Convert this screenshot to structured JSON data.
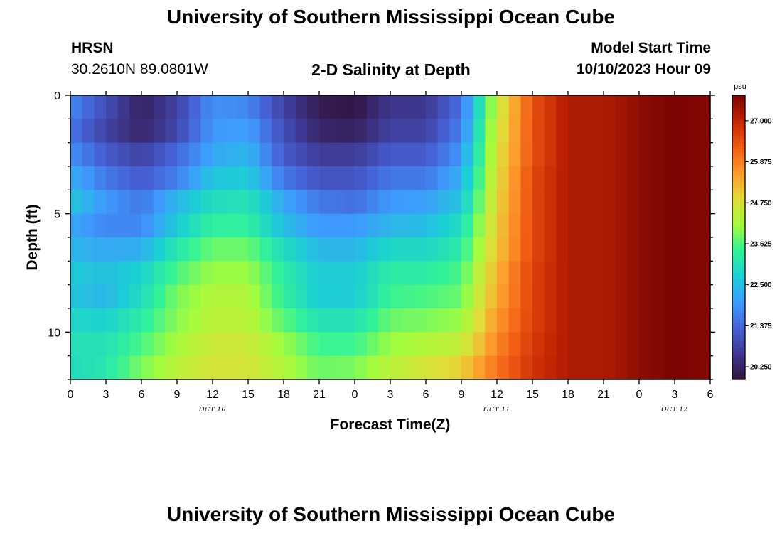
{
  "header": {
    "title": "University of Southern Mississippi Ocean Cube",
    "station": "HRSN",
    "coords": "30.2610N  89.0801W",
    "subtitle": "2-D Salinity at Depth",
    "model_label": "Model Start Time",
    "model_time": "10/10/2023 Hour 09"
  },
  "footer": {
    "title": "University of Southern Mississippi Ocean Cube"
  },
  "chart_data": {
    "type": "heatmap",
    "title": "2-D Salinity at Depth",
    "xlabel": "Forecast Time(Z)",
    "ylabel": "Depth (ft)",
    "x_ticks": [
      "0",
      "3",
      "6",
      "9",
      "12",
      "15",
      "18",
      "21",
      "0",
      "3",
      "6",
      "9",
      "12",
      "15",
      "18",
      "21",
      "0",
      "3",
      "6"
    ],
    "x_date_labels": [
      {
        "label": "OCT 10",
        "at_hour": 12
      },
      {
        "label": "OCT 11",
        "at_hour": 36
      },
      {
        "label": "OCT 12",
        "at_hour": 51
      }
    ],
    "x_range_hours": [
      0,
      54
    ],
    "y_ticks": [
      "0",
      "5",
      "10"
    ],
    "y_range": [
      0,
      12
    ],
    "colorbar": {
      "unit": "psu",
      "ticks": [
        "27.000",
        "25.875",
        "24.750",
        "23.625",
        "22.500",
        "21.375",
        "20.250"
      ],
      "range": [
        19.9,
        27.7
      ],
      "colors": [
        "#30123b",
        "#3e378f",
        "#4662d7",
        "#3e9bfe",
        "#1bcfd4",
        "#31f299",
        "#a4fc3c",
        "#e2dc38",
        "#fe9b2d",
        "#f05b12",
        "#c42503",
        "#7a0403"
      ]
    },
    "depth_levels_ft": [
      0.5,
      1.5,
      2.5,
      3.5,
      4.5,
      5.5,
      6.5,
      7.5,
      8.5,
      9.5,
      10.5,
      11.5
    ],
    "time_hours": [
      0,
      3,
      6,
      9,
      12,
      15,
      18,
      21,
      24,
      27,
      30,
      33,
      36,
      39,
      42,
      45,
      48,
      51,
      54
    ],
    "salinity": [
      [
        21.8,
        21.0,
        20.2,
        20.8,
        21.9,
        21.8,
        20.8,
        20.1,
        20.0,
        20.6,
        20.6,
        21.5,
        24.5,
        26.4,
        27.2,
        27.2,
        27.5,
        27.7,
        27.6
      ],
      [
        21.6,
        20.8,
        20.3,
        20.9,
        22.0,
        22.1,
        21.0,
        20.3,
        20.2,
        20.8,
        20.8,
        21.7,
        24.6,
        26.4,
        27.2,
        27.2,
        27.5,
        27.7,
        27.6
      ],
      [
        21.9,
        21.2,
        20.8,
        21.4,
        22.2,
        22.4,
        21.2,
        20.7,
        20.7,
        21.2,
        21.2,
        22.0,
        24.7,
        26.4,
        27.2,
        27.2,
        27.5,
        27.7,
        27.6
      ],
      [
        22.3,
        21.6,
        21.2,
        21.7,
        22.6,
        22.7,
        21.6,
        21.1,
        21.1,
        21.6,
        21.6,
        22.3,
        24.8,
        26.5,
        27.2,
        27.2,
        27.5,
        27.7,
        27.6
      ],
      [
        22.6,
        22.0,
        21.6,
        22.4,
        23.0,
        23.1,
        22.2,
        21.6,
        21.5,
        22.0,
        22.1,
        22.6,
        24.9,
        26.5,
        27.2,
        27.2,
        27.5,
        27.7,
        27.6
      ],
      [
        22.2,
        21.8,
        21.8,
        22.7,
        23.4,
        23.4,
        22.5,
        22.0,
        22.0,
        22.4,
        22.5,
        23.0,
        25.0,
        26.5,
        27.2,
        27.2,
        27.5,
        27.7,
        27.6
      ],
      [
        22.4,
        22.2,
        22.3,
        23.2,
        23.8,
        23.8,
        23.0,
        22.4,
        22.4,
        22.9,
        22.9,
        23.3,
        25.1,
        26.5,
        27.2,
        27.2,
        27.5,
        27.7,
        27.6
      ],
      [
        22.7,
        22.5,
        22.8,
        23.6,
        24.1,
        24.1,
        23.3,
        22.7,
        22.7,
        23.3,
        23.3,
        23.6,
        25.3,
        26.6,
        27.2,
        27.2,
        27.5,
        27.7,
        27.6
      ],
      [
        22.6,
        22.4,
        23.0,
        23.9,
        24.3,
        24.3,
        23.4,
        22.7,
        22.7,
        23.5,
        23.6,
        23.8,
        25.4,
        26.6,
        27.2,
        27.2,
        27.5,
        27.7,
        27.6
      ],
      [
        22.9,
        22.8,
        23.3,
        24.0,
        24.4,
        24.4,
        23.7,
        23.1,
        23.1,
        23.8,
        23.9,
        24.1,
        25.6,
        26.6,
        27.2,
        27.2,
        27.5,
        27.7,
        27.6
      ],
      [
        23.1,
        23.1,
        23.6,
        24.2,
        24.6,
        24.6,
        24.1,
        23.5,
        23.5,
        24.1,
        24.3,
        24.5,
        25.8,
        26.7,
        27.2,
        27.2,
        27.5,
        27.7,
        27.6
      ],
      [
        23.0,
        23.2,
        23.9,
        24.4,
        24.7,
        24.7,
        24.3,
        23.8,
        23.9,
        24.4,
        24.7,
        25.0,
        26.0,
        26.8,
        27.2,
        27.2,
        27.5,
        27.7,
        27.6
      ]
    ]
  }
}
